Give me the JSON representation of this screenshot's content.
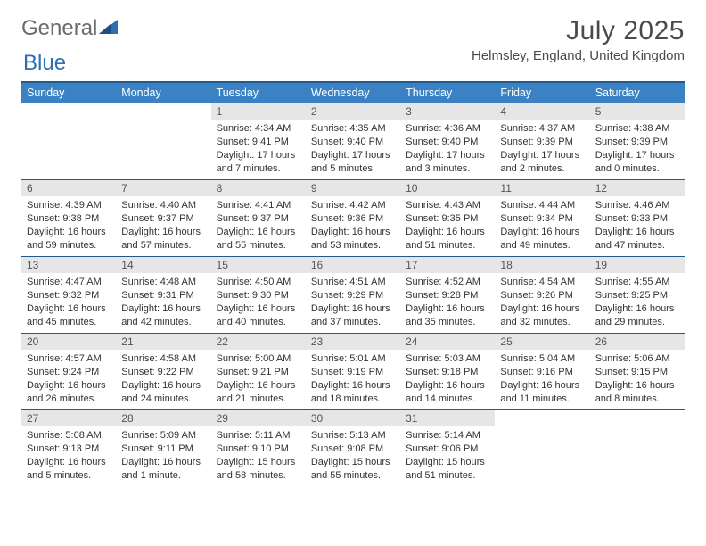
{
  "logo": {
    "part1": "General",
    "part2": "Blue"
  },
  "title": "July 2025",
  "location": "Helmsley, England, United Kingdom",
  "colors": {
    "header_bg": "#3a82c4",
    "header_border": "#1f5a90",
    "daynum_bg": "#e6e6e6",
    "text": "#4a4a4a"
  },
  "weekdays": [
    "Sunday",
    "Monday",
    "Tuesday",
    "Wednesday",
    "Thursday",
    "Friday",
    "Saturday"
  ],
  "weeks": [
    [
      null,
      null,
      {
        "d": "1",
        "sr": "4:34 AM",
        "ss": "9:41 PM",
        "dl": "17 hours and 7 minutes."
      },
      {
        "d": "2",
        "sr": "4:35 AM",
        "ss": "9:40 PM",
        "dl": "17 hours and 5 minutes."
      },
      {
        "d": "3",
        "sr": "4:36 AM",
        "ss": "9:40 PM",
        "dl": "17 hours and 3 minutes."
      },
      {
        "d": "4",
        "sr": "4:37 AM",
        "ss": "9:39 PM",
        "dl": "17 hours and 2 minutes."
      },
      {
        "d": "5",
        "sr": "4:38 AM",
        "ss": "9:39 PM",
        "dl": "17 hours and 0 minutes."
      }
    ],
    [
      {
        "d": "6",
        "sr": "4:39 AM",
        "ss": "9:38 PM",
        "dl": "16 hours and 59 minutes."
      },
      {
        "d": "7",
        "sr": "4:40 AM",
        "ss": "9:37 PM",
        "dl": "16 hours and 57 minutes."
      },
      {
        "d": "8",
        "sr": "4:41 AM",
        "ss": "9:37 PM",
        "dl": "16 hours and 55 minutes."
      },
      {
        "d": "9",
        "sr": "4:42 AM",
        "ss": "9:36 PM",
        "dl": "16 hours and 53 minutes."
      },
      {
        "d": "10",
        "sr": "4:43 AM",
        "ss": "9:35 PM",
        "dl": "16 hours and 51 minutes."
      },
      {
        "d": "11",
        "sr": "4:44 AM",
        "ss": "9:34 PM",
        "dl": "16 hours and 49 minutes."
      },
      {
        "d": "12",
        "sr": "4:46 AM",
        "ss": "9:33 PM",
        "dl": "16 hours and 47 minutes."
      }
    ],
    [
      {
        "d": "13",
        "sr": "4:47 AM",
        "ss": "9:32 PM",
        "dl": "16 hours and 45 minutes."
      },
      {
        "d": "14",
        "sr": "4:48 AM",
        "ss": "9:31 PM",
        "dl": "16 hours and 42 minutes."
      },
      {
        "d": "15",
        "sr": "4:50 AM",
        "ss": "9:30 PM",
        "dl": "16 hours and 40 minutes."
      },
      {
        "d": "16",
        "sr": "4:51 AM",
        "ss": "9:29 PM",
        "dl": "16 hours and 37 minutes."
      },
      {
        "d": "17",
        "sr": "4:52 AM",
        "ss": "9:28 PM",
        "dl": "16 hours and 35 minutes."
      },
      {
        "d": "18",
        "sr": "4:54 AM",
        "ss": "9:26 PM",
        "dl": "16 hours and 32 minutes."
      },
      {
        "d": "19",
        "sr": "4:55 AM",
        "ss": "9:25 PM",
        "dl": "16 hours and 29 minutes."
      }
    ],
    [
      {
        "d": "20",
        "sr": "4:57 AM",
        "ss": "9:24 PM",
        "dl": "16 hours and 26 minutes."
      },
      {
        "d": "21",
        "sr": "4:58 AM",
        "ss": "9:22 PM",
        "dl": "16 hours and 24 minutes."
      },
      {
        "d": "22",
        "sr": "5:00 AM",
        "ss": "9:21 PM",
        "dl": "16 hours and 21 minutes."
      },
      {
        "d": "23",
        "sr": "5:01 AM",
        "ss": "9:19 PM",
        "dl": "16 hours and 18 minutes."
      },
      {
        "d": "24",
        "sr": "5:03 AM",
        "ss": "9:18 PM",
        "dl": "16 hours and 14 minutes."
      },
      {
        "d": "25",
        "sr": "5:04 AM",
        "ss": "9:16 PM",
        "dl": "16 hours and 11 minutes."
      },
      {
        "d": "26",
        "sr": "5:06 AM",
        "ss": "9:15 PM",
        "dl": "16 hours and 8 minutes."
      }
    ],
    [
      {
        "d": "27",
        "sr": "5:08 AM",
        "ss": "9:13 PM",
        "dl": "16 hours and 5 minutes."
      },
      {
        "d": "28",
        "sr": "5:09 AM",
        "ss": "9:11 PM",
        "dl": "16 hours and 1 minute."
      },
      {
        "d": "29",
        "sr": "5:11 AM",
        "ss": "9:10 PM",
        "dl": "15 hours and 58 minutes."
      },
      {
        "d": "30",
        "sr": "5:13 AM",
        "ss": "9:08 PM",
        "dl": "15 hours and 55 minutes."
      },
      {
        "d": "31",
        "sr": "5:14 AM",
        "ss": "9:06 PM",
        "dl": "15 hours and 51 minutes."
      },
      null,
      null
    ]
  ],
  "labels": {
    "sunrise": "Sunrise:",
    "sunset": "Sunset:",
    "daylight": "Daylight:"
  }
}
